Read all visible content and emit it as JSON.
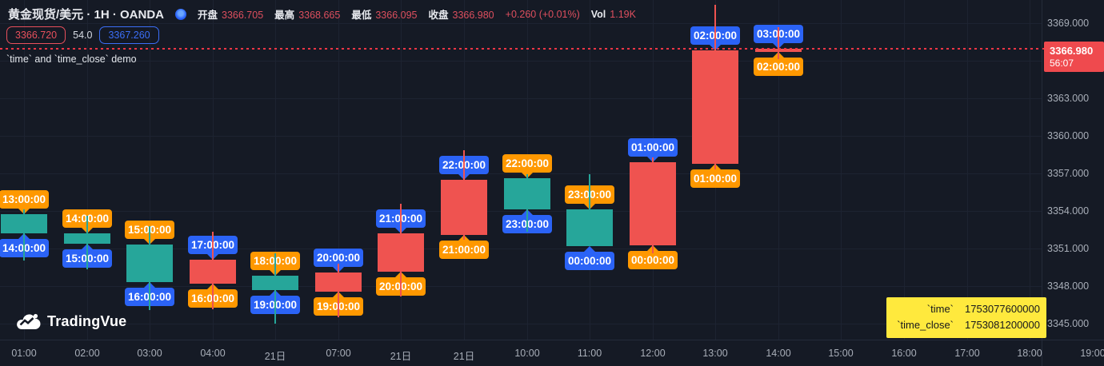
{
  "header": {
    "symbol_title": "黄金现货/美元 · 1H · OANDA",
    "feed_icon": "blue-dot-icon",
    "ohlc": {
      "open_label": "开盘",
      "open": "3366.705",
      "high_label": "最高",
      "high": "3368.665",
      "low_label": "最低",
      "low": "3366.095",
      "close_label": "收盘",
      "close": "3366.980",
      "change": "+0.260 (+0.01%)",
      "vol_label": "Vol",
      "vol": "1.19K"
    },
    "row2": {
      "left_badge": "3366.720",
      "mid_value": "54.0",
      "right_badge": "3367.260"
    },
    "subtitle": "`time` and `time_close` demo"
  },
  "price_axis": {
    "labels": [
      "3369.000",
      "3363.000",
      "3360.000",
      "3357.000",
      "3354.000",
      "3351.000",
      "3348.000",
      "3345.000"
    ],
    "current": {
      "price": "3366.980",
      "countdown": "56:07"
    }
  },
  "time_axis": {
    "labels": [
      "01:00",
      "02:00",
      "03:00",
      "04:00",
      "21日",
      "07:00",
      "21日",
      "21日",
      "10:00",
      "11:00",
      "12:00",
      "13:00",
      "14:00",
      "15:00",
      "16:00",
      "17:00",
      "18:00",
      "19:00"
    ]
  },
  "tooltip": {
    "rows": [
      {
        "label": "`time`",
        "value": "1753077600000"
      },
      {
        "label": "`time_close`",
        "value": "1753081200000"
      }
    ]
  },
  "logo": {
    "text": "TradingVue"
  },
  "colors": {
    "background": "#151a25",
    "grid": "#1d2331",
    "up_candle": "#ef5350",
    "down_candle": "#26a69a",
    "time_label": "#ff9800",
    "time_close_label": "#2b63f6",
    "price_line": "#f23645",
    "current_price_badge": "#ef4a4e",
    "axis_text": "#a8aeb8",
    "value_red": "#dd4f5e",
    "tooltip_yellow": "#ffe93d"
  },
  "chart_data": {
    "type": "candlestick",
    "title": "黄金现货/美元 1H OANDA — `time` and `time_close` demo",
    "convention": "red = up, teal = down (CN color convention)",
    "ylim": [
      3344.2,
      3370.5
    ],
    "price_grid_step": 3,
    "grid_prices": [
      3345,
      3348,
      3351,
      3354,
      3357,
      3360,
      3363,
      3366,
      3369
    ],
    "current_price": 3366.98,
    "x_slots": 18,
    "candles": [
      {
        "slot": 0,
        "time": "13:00:00",
        "time_close": "14:00:00",
        "o": 3353.75,
        "h": 3354.15,
        "l": 3350.05,
        "c": 3352.2
      },
      {
        "slot": 1,
        "time": "14:00:00",
        "time_close": "15:00:00",
        "o": 3352.2,
        "h": 3353.6,
        "l": 3349.35,
        "c": 3351.4
      },
      {
        "slot": 2,
        "time": "15:00:00",
        "time_close": "16:00:00",
        "o": 3351.3,
        "h": 3352.8,
        "l": 3346.1,
        "c": 3348.3
      },
      {
        "slot": 3,
        "time": "16:00:00",
        "time_close": "17:00:00",
        "o": 3348.2,
        "h": 3352.35,
        "l": 3346.15,
        "c": 3350.1
      },
      {
        "slot": 4,
        "time": "18:00:00",
        "time_close": "19:00:00",
        "o": 3348.85,
        "h": 3350.6,
        "l": 3345.0,
        "c": 3347.7
      },
      {
        "slot": 5,
        "time": "19:00:00",
        "time_close": "20:00:00",
        "o": 3347.55,
        "h": 3349.8,
        "l": 3345.5,
        "c": 3349.1
      },
      {
        "slot": 6,
        "time": "20:00:00",
        "time_close": "21:00:00",
        "o": 3349.15,
        "h": 3354.55,
        "l": 3347.15,
        "c": 3352.2
      },
      {
        "slot": 7,
        "time": "21:00:00",
        "time_close": "22:00:00",
        "o": 3352.1,
        "h": 3358.85,
        "l": 3351.7,
        "c": 3356.5
      },
      {
        "slot": 8,
        "time": "22:00:00",
        "time_close": "23:00:00",
        "o": 3356.6,
        "h": 3356.95,
        "l": 3352.35,
        "c": 3354.15
      },
      {
        "slot": 9,
        "time": "23:00:00",
        "time_close": "00:00:00",
        "o": 3354.15,
        "h": 3356.95,
        "l": 3351.2,
        "c": 3351.2
      },
      {
        "slot": 10,
        "time": "00:00:00",
        "time_close": "01:00:00",
        "o": 3351.25,
        "h": 3358.25,
        "l": 3350.6,
        "c": 3357.9
      },
      {
        "slot": 11,
        "time": "01:00:00",
        "time_close": "02:00:00",
        "o": 3357.75,
        "h": 3370.45,
        "l": 3357.3,
        "c": 3366.85
      },
      {
        "slot": 12,
        "time": "02:00:00",
        "time_close": "03:00:00",
        "o": 3366.705,
        "h": 3368.665,
        "l": 3366.095,
        "c": 3366.98
      }
    ]
  }
}
